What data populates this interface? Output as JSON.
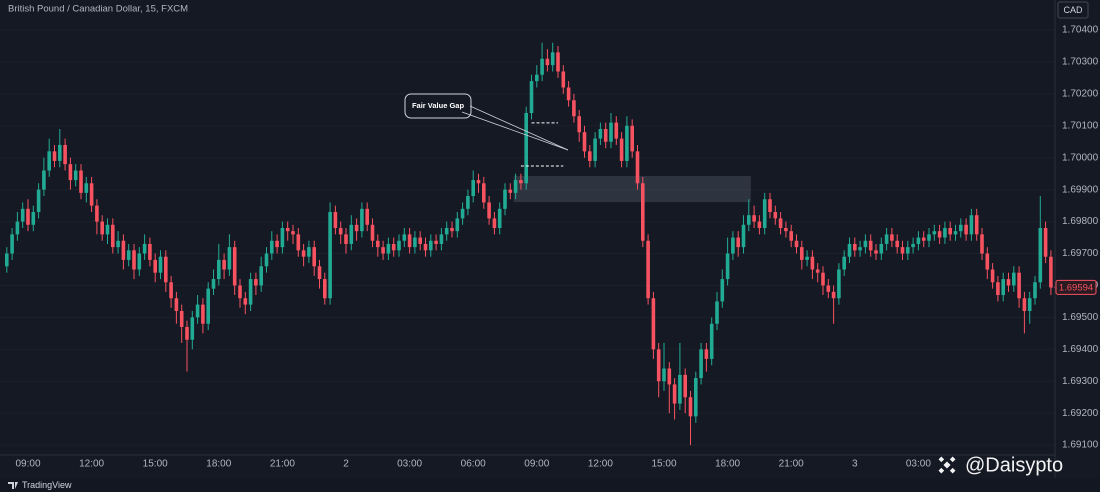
{
  "chart_data": {
    "type": "candlestick",
    "title": "British Pound / Canadian Dollar, 15, FXCM",
    "currency": "CAD",
    "up_color": "#22ab94",
    "down_color": "#f7525f",
    "grid": true,
    "ylim": [
      1.69069,
      1.70494
    ],
    "yticks": [
      {
        "value": 1.691,
        "label": "1.69100"
      },
      {
        "value": 1.692,
        "label": "1.69200"
      },
      {
        "value": 1.693,
        "label": "1.69300"
      },
      {
        "value": 1.694,
        "label": "1.69400"
      },
      {
        "value": 1.695,
        "label": "1.69500"
      },
      {
        "value": 1.696,
        "label": "1.69600"
      },
      {
        "value": 1.697,
        "label": "1.69700"
      },
      {
        "value": 1.698,
        "label": "1.69800"
      },
      {
        "value": 1.699,
        "label": "1.69900"
      },
      {
        "value": 1.7,
        "label": "1.70000"
      },
      {
        "value": 1.701,
        "label": "1.70100"
      },
      {
        "value": 1.702,
        "label": "1.70200"
      },
      {
        "value": 1.703,
        "label": "1.70300"
      },
      {
        "value": 1.704,
        "label": "1.70400"
      }
    ],
    "x": [
      null,
      null,
      null,
      null,
      "09:00",
      null,
      null,
      null,
      null,
      null,
      null,
      null,
      null,
      null,
      null,
      null,
      "12:00",
      null,
      null,
      null,
      null,
      null,
      null,
      null,
      null,
      null,
      null,
      null,
      "15:00",
      null,
      null,
      null,
      null,
      null,
      null,
      null,
      null,
      null,
      null,
      null,
      "18:00",
      null,
      null,
      null,
      null,
      null,
      null,
      null,
      null,
      null,
      null,
      null,
      "21:00",
      null,
      null,
      null,
      null,
      null,
      null,
      null,
      null,
      null,
      null,
      null,
      "2",
      null,
      null,
      null,
      null,
      null,
      null,
      null,
      null,
      null,
      null,
      null,
      "03:00",
      null,
      null,
      null,
      null,
      null,
      null,
      null,
      null,
      null,
      null,
      null,
      "06:00",
      null,
      null,
      null,
      null,
      null,
      null,
      null,
      null,
      null,
      null,
      null,
      "09:00",
      null,
      null,
      null,
      null,
      null,
      null,
      null,
      null,
      null,
      null,
      null,
      "12:00",
      null,
      null,
      null,
      null,
      null,
      null,
      null,
      null,
      null,
      null,
      null,
      "15:00",
      null,
      null,
      null,
      null,
      null,
      null,
      null,
      null,
      null,
      null,
      null,
      "18:00",
      null,
      null,
      null,
      null,
      null,
      null,
      null,
      null,
      null,
      null,
      null,
      "21:00",
      null,
      null,
      null,
      null,
      null,
      null,
      null,
      null,
      null,
      null,
      null,
      "3",
      null,
      null,
      null,
      null,
      null,
      null,
      null,
      null,
      null,
      null,
      null,
      "03:00",
      null,
      null,
      null,
      null,
      null,
      null,
      null,
      null,
      null,
      null,
      null,
      null,
      null,
      null,
      null,
      null,
      null,
      null,
      null,
      null,
      null,
      null,
      null,
      null,
      null
    ],
    "open": [
      1.6966,
      1.697,
      1.6976,
      1.698,
      1.6984,
      1.6979,
      1.6983,
      1.699,
      1.6996,
      1.7002,
      1.6999,
      1.7004,
      1.6998,
      1.6993,
      1.6996,
      1.6989,
      1.6992,
      1.6985,
      1.698,
      1.6976,
      1.6979,
      1.6972,
      1.6974,
      1.6968,
      1.6971,
      1.6965,
      1.697,
      1.6973,
      1.6968,
      1.6964,
      1.6969,
      1.6961,
      1.6956,
      1.6952,
      1.6947,
      1.6943,
      1.695,
      1.6954,
      1.6948,
      1.6959,
      1.6962,
      1.6968,
      1.6965,
      1.6972,
      1.696,
      1.6956,
      1.6954,
      1.6962,
      1.696,
      1.6966,
      1.697,
      1.6974,
      1.6972,
      1.6978,
      1.6977,
      1.6976,
      1.6971,
      1.6969,
      1.6972,
      1.6966,
      1.6962,
      1.6956,
      1.6983,
      1.6978,
      1.6976,
      1.6973,
      1.6979,
      1.6977,
      1.6984,
      1.6979,
      1.6974,
      1.6972,
      1.697,
      1.6973,
      1.6971,
      1.6974,
      1.6976,
      1.6972,
      1.6975,
      1.6973,
      1.6971,
      1.6974,
      1.6973,
      1.6976,
      1.6978,
      1.6977,
      1.6981,
      1.6984,
      1.6988,
      1.6993,
      1.6992,
      1.6986,
      1.6981,
      1.6978,
      1.6984,
      1.699,
      1.6989,
      1.6993,
      1.6992,
      1.7014,
      1.7024,
      1.7026,
      1.7031,
      1.7029,
      1.7033,
      1.7027,
      1.7022,
      1.7018,
      1.7013,
      1.7008,
      1.7002,
      1.6999,
      1.7006,
      1.7009,
      1.7005,
      1.7011,
      1.7006,
      1.6999,
      1.701,
      1.7002,
      1.6992,
      1.6974,
      1.6956,
      1.694,
      1.693,
      1.6934,
      1.6929,
      1.6923,
      1.6932,
      1.6925,
      1.6919,
      1.6931,
      1.694,
      1.6937,
      1.6948,
      1.6955,
      1.6962,
      1.697,
      1.6975,
      1.6972,
      1.6979,
      1.6982,
      1.698,
      1.6978,
      1.6987,
      1.6983,
      1.6981,
      1.6978,
      1.6977,
      1.6974,
      1.6972,
      1.6968,
      1.6969,
      1.6965,
      1.6964,
      1.696,
      1.6958,
      1.6956,
      1.6965,
      1.6969,
      1.6973,
      1.6971,
      1.6972,
      1.6974,
      1.6971,
      1.697,
      1.6973,
      1.6976,
      1.6974,
      1.6972,
      1.697,
      1.6972,
      1.6973,
      1.6975,
      1.6974,
      1.6976,
      1.6977,
      1.6975,
      1.6978,
      1.6976,
      1.6977,
      1.6979,
      1.6976,
      1.6982,
      1.6976,
      1.697,
      1.6965,
      1.6961,
      1.6957,
      1.6962,
      1.696,
      1.6964,
      1.6956,
      1.6952,
      1.6956,
      1.6961,
      1.6978,
      1.6969
    ],
    "high": [
      1.6972,
      1.6978,
      1.6983,
      1.6986,
      1.6987,
      1.6985,
      1.6992,
      1.7,
      1.7006,
      1.7004,
      1.7009,
      1.7006,
      1.7,
      1.6998,
      1.6998,
      1.6994,
      1.6994,
      1.6987,
      1.6982,
      1.6981,
      1.6981,
      1.6977,
      1.6976,
      1.6973,
      1.6973,
      1.6972,
      1.6976,
      1.6975,
      1.697,
      1.6971,
      1.6971,
      1.6963,
      1.6958,
      1.6954,
      1.6949,
      1.6952,
      1.6957,
      1.6956,
      1.6961,
      1.6965,
      1.6973,
      1.697,
      1.6976,
      1.6974,
      1.6962,
      1.6958,
      1.6964,
      1.6964,
      1.6969,
      1.6972,
      1.6977,
      1.6976,
      1.698,
      1.698,
      1.6979,
      1.6978,
      1.6973,
      1.6974,
      1.6974,
      1.6968,
      1.6964,
      1.6986,
      1.6985,
      1.698,
      1.6978,
      1.6982,
      1.6981,
      1.6986,
      1.6986,
      1.6981,
      1.6976,
      1.6974,
      1.6975,
      1.6975,
      1.6976,
      1.6978,
      1.6978,
      1.6977,
      1.6977,
      1.6975,
      1.6976,
      1.6976,
      1.6978,
      1.698,
      1.698,
      1.6983,
      1.6986,
      1.699,
      1.6996,
      1.6995,
      1.6994,
      1.6988,
      1.6983,
      1.6986,
      1.6992,
      1.6992,
      1.6995,
      1.6995,
      1.7016,
      1.7026,
      1.7029,
      1.7036,
      1.7034,
      1.7036,
      1.7035,
      1.7029,
      1.7024,
      1.702,
      1.7015,
      1.701,
      1.7004,
      1.7008,
      1.7011,
      1.7011,
      1.7014,
      1.7013,
      1.7008,
      1.7013,
      1.7012,
      1.7004,
      1.6994,
      1.6976,
      1.6958,
      1.6942,
      1.6942,
      1.6936,
      1.6931,
      1.6942,
      1.6934,
      1.6927,
      1.6933,
      1.6942,
      1.6942,
      1.695,
      1.6958,
      1.6965,
      1.6975,
      1.6977,
      1.6977,
      1.6982,
      1.6987,
      1.6985,
      1.6982,
      1.6989,
      1.6989,
      1.6985,
      1.6983,
      1.698,
      1.6979,
      1.6976,
      1.6974,
      1.6971,
      1.6971,
      1.6967,
      1.6966,
      1.6962,
      1.696,
      1.6967,
      1.6971,
      1.6975,
      1.6975,
      1.6974,
      1.6976,
      1.6976,
      1.6973,
      1.6975,
      1.6978,
      1.6978,
      1.6976,
      1.6974,
      1.6974,
      1.6975,
      1.6977,
      1.6977,
      1.6978,
      1.6979,
      1.6979,
      1.698,
      1.698,
      1.6979,
      1.6981,
      1.6981,
      1.6984,
      1.6984,
      1.6978,
      1.6972,
      1.6967,
      1.6963,
      1.6964,
      1.6964,
      1.6966,
      1.6966,
      1.6958,
      1.6958,
      1.6963,
      1.6988,
      1.698,
      1.6971
    ],
    "low": [
      1.6964,
      1.6968,
      1.6974,
      1.6978,
      1.6977,
      1.6977,
      1.6981,
      1.6988,
      1.6994,
      1.6997,
      1.6997,
      1.6996,
      1.699,
      1.6991,
      1.6987,
      1.6986,
      1.6983,
      1.6976,
      1.6974,
      1.6973,
      1.697,
      1.697,
      1.6965,
      1.6966,
      1.6962,
      1.6963,
      1.6968,
      1.6966,
      1.6961,
      1.6962,
      1.6958,
      1.6953,
      1.6948,
      1.6942,
      1.6933,
      1.694,
      1.6948,
      1.6945,
      1.6946,
      1.6957,
      1.696,
      1.6962,
      1.6963,
      1.6957,
      1.6953,
      1.6951,
      1.6952,
      1.6957,
      1.6958,
      1.6964,
      1.6968,
      1.697,
      1.697,
      1.6974,
      1.6973,
      1.6969,
      1.6966,
      1.6967,
      1.6963,
      1.6959,
      1.6954,
      1.6954,
      1.6976,
      1.6973,
      1.697,
      1.6971,
      1.6974,
      1.6975,
      1.6977,
      1.6972,
      1.6969,
      1.6968,
      1.6968,
      1.6969,
      1.6969,
      1.6972,
      1.697,
      1.697,
      1.6971,
      1.6969,
      1.6969,
      1.6971,
      1.6971,
      1.6974,
      1.6975,
      1.6975,
      1.6979,
      1.6982,
      1.6986,
      1.6989,
      1.6984,
      1.6979,
      1.6976,
      1.6976,
      1.6982,
      1.6987,
      1.6987,
      1.699,
      1.699,
      1.7012,
      1.7022,
      1.7024,
      1.7027,
      1.7027,
      1.7025,
      1.702,
      1.7016,
      1.7011,
      1.7005,
      1.7,
      1.6997,
      1.6997,
      1.7004,
      1.7003,
      1.7003,
      1.7004,
      1.6997,
      1.6997,
      1.7,
      1.699,
      1.6972,
      1.6954,
      1.6937,
      1.6925,
      1.6927,
      1.692,
      1.6918,
      1.6921,
      1.692,
      1.691,
      1.6917,
      1.6929,
      1.6933,
      1.6935,
      1.6946,
      1.6953,
      1.696,
      1.6968,
      1.6969,
      1.697,
      1.6977,
      1.6978,
      1.6976,
      1.6976,
      1.6981,
      1.6979,
      1.6976,
      1.6975,
      1.6972,
      1.697,
      1.6965,
      1.6966,
      1.6962,
      1.6961,
      1.6957,
      1.6956,
      1.6948,
      1.6954,
      1.6963,
      1.6967,
      1.6969,
      1.6969,
      1.697,
      1.6969,
      1.6968,
      1.6968,
      1.6971,
      1.6972,
      1.697,
      1.6968,
      1.6968,
      1.697,
      1.6971,
      1.6972,
      1.6972,
      1.6974,
      1.6973,
      1.6973,
      1.6974,
      1.6974,
      1.6975,
      1.6974,
      1.6974,
      1.6974,
      1.6968,
      1.6962,
      1.6959,
      1.6955,
      1.6955,
      1.6958,
      1.6958,
      1.6953,
      1.6945,
      1.6948,
      1.6954,
      1.6959,
      1.6967,
      1.6957
    ],
    "close": [
      1.697,
      1.6976,
      1.698,
      1.6984,
      1.6979,
      1.6983,
      1.699,
      1.6996,
      1.7002,
      1.6999,
      1.7004,
      1.6998,
      1.6993,
      1.6996,
      1.6989,
      1.6992,
      1.6985,
      1.698,
      1.6976,
      1.6979,
      1.6972,
      1.6974,
      1.6968,
      1.6971,
      1.6965,
      1.697,
      1.6973,
      1.6968,
      1.6964,
      1.6969,
      1.6961,
      1.6956,
      1.6952,
      1.6947,
      1.6943,
      1.695,
      1.6954,
      1.6948,
      1.6959,
      1.6962,
      1.6968,
      1.6965,
      1.6972,
      1.696,
      1.6956,
      1.6954,
      1.6962,
      1.696,
      1.6966,
      1.697,
      1.6974,
      1.6972,
      1.6978,
      1.6977,
      1.6976,
      1.6971,
      1.6969,
      1.6972,
      1.6966,
      1.6962,
      1.6956,
      1.6983,
      1.6978,
      1.6976,
      1.6973,
      1.6979,
      1.6977,
      1.6984,
      1.6979,
      1.6974,
      1.6972,
      1.697,
      1.6973,
      1.6971,
      1.6974,
      1.6976,
      1.6972,
      1.6975,
      1.6973,
      1.6971,
      1.6974,
      1.6973,
      1.6976,
      1.6978,
      1.6977,
      1.6981,
      1.6984,
      1.6988,
      1.6993,
      1.6992,
      1.6986,
      1.6981,
      1.6978,
      1.6984,
      1.699,
      1.6989,
      1.6993,
      1.6992,
      1.7014,
      1.7024,
      1.7026,
      1.7031,
      1.7029,
      1.7033,
      1.7027,
      1.7022,
      1.7018,
      1.7013,
      1.7008,
      1.7002,
      1.6999,
      1.7006,
      1.7009,
      1.7005,
      1.7011,
      1.7006,
      1.6999,
      1.701,
      1.7002,
      1.6992,
      1.6974,
      1.6956,
      1.694,
      1.693,
      1.6934,
      1.6929,
      1.6923,
      1.6932,
      1.6925,
      1.6919,
      1.6931,
      1.694,
      1.6937,
      1.6948,
      1.6955,
      1.6962,
      1.697,
      1.6975,
      1.6972,
      1.6979,
      1.6982,
      1.698,
      1.6978,
      1.6987,
      1.6983,
      1.6981,
      1.6978,
      1.6977,
      1.6974,
      1.6972,
      1.6968,
      1.6969,
      1.6965,
      1.6964,
      1.696,
      1.6958,
      1.6956,
      1.6965,
      1.6969,
      1.6973,
      1.6971,
      1.6972,
      1.6974,
      1.6971,
      1.697,
      1.6973,
      1.6976,
      1.6974,
      1.6972,
      1.697,
      1.6972,
      1.6973,
      1.6975,
      1.6974,
      1.6976,
      1.6977,
      1.6975,
      1.6978,
      1.6976,
      1.6977,
      1.6979,
      1.6976,
      1.6982,
      1.6976,
      1.697,
      1.6965,
      1.6961,
      1.6957,
      1.6962,
      1.696,
      1.6964,
      1.6956,
      1.6952,
      1.6956,
      1.6961,
      1.6978,
      1.6969,
      1.69594
    ],
    "last_price": 1.69594,
    "zone": {
      "high": 1.69943,
      "low": 1.69861
    },
    "annotation": {
      "text": "Fair Value Gap",
      "gap_high": 1.70109,
      "gap_low": 1.69974
    }
  },
  "watermark": "@Daisypto",
  "logo": "TradingView"
}
